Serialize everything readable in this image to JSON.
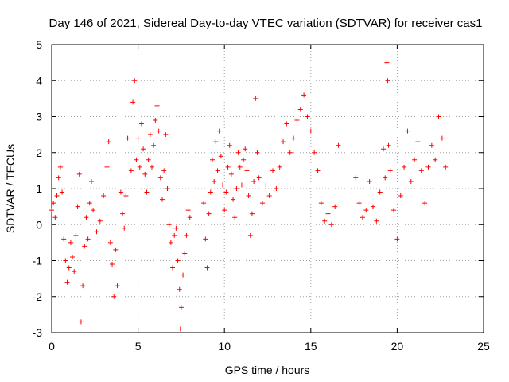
{
  "chart_data": {
    "type": "scatter",
    "title": "Day 146 of 2021, Sidereal Day-to-day VTEC variation (SDTVAR) for receiver cas1",
    "xlabel": "GPS time / hours",
    "ylabel": "SDTVAR / TECUs",
    "xlim": [
      0,
      25
    ],
    "ylim": [
      -3,
      5
    ],
    "xticks": [
      "0",
      "5",
      "10",
      "15",
      "20",
      "25"
    ],
    "yticks": [
      "-3",
      "-2",
      "-1",
      "0",
      "1",
      "2",
      "3",
      "4",
      "5"
    ],
    "grid": true,
    "marker": "plus",
    "color": "#ff0000",
    "series": [
      {
        "name": "SDTVAR",
        "points": [
          [
            0.0,
            0.4
          ],
          [
            0.1,
            0.6
          ],
          [
            0.2,
            0.2
          ],
          [
            0.3,
            0.8
          ],
          [
            0.4,
            1.3
          ],
          [
            0.5,
            1.6
          ],
          [
            0.6,
            0.9
          ],
          [
            0.7,
            -0.4
          ],
          [
            0.8,
            -1.0
          ],
          [
            0.9,
            -1.6
          ],
          [
            1.0,
            -1.2
          ],
          [
            1.1,
            -0.5
          ],
          [
            1.2,
            -0.9
          ],
          [
            1.3,
            -1.3
          ],
          [
            1.4,
            -0.3
          ],
          [
            1.5,
            0.5
          ],
          [
            1.6,
            1.4
          ],
          [
            1.7,
            -2.7
          ],
          [
            1.8,
            -1.7
          ],
          [
            1.9,
            -0.6
          ],
          [
            2.0,
            0.2
          ],
          [
            2.1,
            -0.4
          ],
          [
            2.2,
            0.6
          ],
          [
            2.3,
            1.2
          ],
          [
            2.4,
            0.4
          ],
          [
            2.6,
            -0.2
          ],
          [
            2.8,
            0.1
          ],
          [
            3.0,
            0.8
          ],
          [
            3.2,
            1.6
          ],
          [
            3.3,
            2.3
          ],
          [
            3.4,
            -0.5
          ],
          [
            3.5,
            -1.1
          ],
          [
            3.6,
            -2.0
          ],
          [
            3.7,
            -0.7
          ],
          [
            3.8,
            -1.7
          ],
          [
            4.0,
            0.9
          ],
          [
            4.1,
            0.3
          ],
          [
            4.2,
            -0.1
          ],
          [
            4.3,
            0.8
          ],
          [
            4.4,
            2.4
          ],
          [
            4.6,
            1.5
          ],
          [
            4.7,
            3.4
          ],
          [
            4.8,
            4.0
          ],
          [
            4.9,
            1.8
          ],
          [
            5.0,
            2.4
          ],
          [
            5.1,
            1.6
          ],
          [
            5.2,
            2.8
          ],
          [
            5.3,
            2.1
          ],
          [
            5.4,
            1.4
          ],
          [
            5.5,
            0.9
          ],
          [
            5.6,
            1.8
          ],
          [
            5.7,
            2.5
          ],
          [
            5.8,
            1.6
          ],
          [
            5.9,
            2.2
          ],
          [
            6.0,
            2.9
          ],
          [
            6.1,
            3.3
          ],
          [
            6.2,
            2.6
          ],
          [
            6.3,
            1.3
          ],
          [
            6.4,
            0.7
          ],
          [
            6.5,
            1.5
          ],
          [
            6.6,
            2.5
          ],
          [
            6.7,
            1.0
          ],
          [
            6.8,
            0.0
          ],
          [
            6.9,
            -0.5
          ],
          [
            7.0,
            -1.2
          ],
          [
            7.1,
            -0.3
          ],
          [
            7.2,
            -0.1
          ],
          [
            7.3,
            -1.0
          ],
          [
            7.4,
            -1.8
          ],
          [
            7.45,
            -2.9
          ],
          [
            7.5,
            -2.3
          ],
          [
            7.6,
            -1.4
          ],
          [
            7.7,
            -0.8
          ],
          [
            7.8,
            -0.3
          ],
          [
            7.9,
            0.4
          ],
          [
            8.0,
            0.2
          ],
          [
            8.8,
            0.6
          ],
          [
            8.9,
            -0.4
          ],
          [
            9.0,
            -1.2
          ],
          [
            9.1,
            0.3
          ],
          [
            9.2,
            0.9
          ],
          [
            9.3,
            1.8
          ],
          [
            9.4,
            1.2
          ],
          [
            9.5,
            2.3
          ],
          [
            9.6,
            1.5
          ],
          [
            9.7,
            2.6
          ],
          [
            9.8,
            1.9
          ],
          [
            9.9,
            1.1
          ],
          [
            10.0,
            0.4
          ],
          [
            10.1,
            0.9
          ],
          [
            10.2,
            1.6
          ],
          [
            10.3,
            2.2
          ],
          [
            10.4,
            1.4
          ],
          [
            10.5,
            0.7
          ],
          [
            10.6,
            0.2
          ],
          [
            10.7,
            1.0
          ],
          [
            10.8,
            2.0
          ],
          [
            10.9,
            1.6
          ],
          [
            11.0,
            1.1
          ],
          [
            11.1,
            1.8
          ],
          [
            11.2,
            2.1
          ],
          [
            11.3,
            1.5
          ],
          [
            11.4,
            0.8
          ],
          [
            11.5,
            -0.3
          ],
          [
            11.6,
            0.3
          ],
          [
            11.7,
            1.2
          ],
          [
            11.8,
            3.5
          ],
          [
            11.9,
            2.0
          ],
          [
            12.0,
            1.3
          ],
          [
            12.2,
            0.6
          ],
          [
            12.4,
            1.1
          ],
          [
            12.6,
            0.8
          ],
          [
            12.8,
            1.5
          ],
          [
            13.0,
            1.0
          ],
          [
            13.2,
            1.6
          ],
          [
            13.4,
            2.3
          ],
          [
            13.6,
            2.8
          ],
          [
            13.8,
            2.0
          ],
          [
            14.0,
            2.4
          ],
          [
            14.2,
            2.9
          ],
          [
            14.4,
            3.2
          ],
          [
            14.6,
            3.6
          ],
          [
            14.8,
            3.0
          ],
          [
            15.0,
            2.6
          ],
          [
            15.2,
            2.0
          ],
          [
            15.4,
            1.5
          ],
          [
            15.6,
            0.6
          ],
          [
            15.8,
            0.1
          ],
          [
            16.0,
            0.3
          ],
          [
            16.2,
            0.0
          ],
          [
            16.4,
            0.5
          ],
          [
            16.6,
            2.2
          ],
          [
            17.6,
            1.3
          ],
          [
            17.8,
            0.6
          ],
          [
            18.0,
            0.2
          ],
          [
            18.2,
            0.4
          ],
          [
            18.4,
            1.2
          ],
          [
            18.6,
            0.5
          ],
          [
            18.8,
            0.1
          ],
          [
            19.0,
            0.9
          ],
          [
            19.2,
            2.1
          ],
          [
            19.3,
            1.3
          ],
          [
            19.4,
            4.5
          ],
          [
            19.45,
            4.0
          ],
          [
            19.5,
            2.2
          ],
          [
            19.6,
            1.5
          ],
          [
            19.8,
            0.4
          ],
          [
            20.0,
            -0.4
          ],
          [
            20.2,
            0.8
          ],
          [
            20.4,
            1.6
          ],
          [
            20.6,
            2.6
          ],
          [
            20.8,
            1.2
          ],
          [
            21.0,
            1.8
          ],
          [
            21.2,
            2.3
          ],
          [
            21.4,
            1.5
          ],
          [
            21.6,
            0.6
          ],
          [
            21.8,
            1.6
          ],
          [
            22.0,
            2.2
          ],
          [
            22.2,
            1.8
          ],
          [
            22.4,
            3.0
          ],
          [
            22.6,
            2.4
          ],
          [
            22.8,
            1.6
          ]
        ]
      }
    ]
  }
}
